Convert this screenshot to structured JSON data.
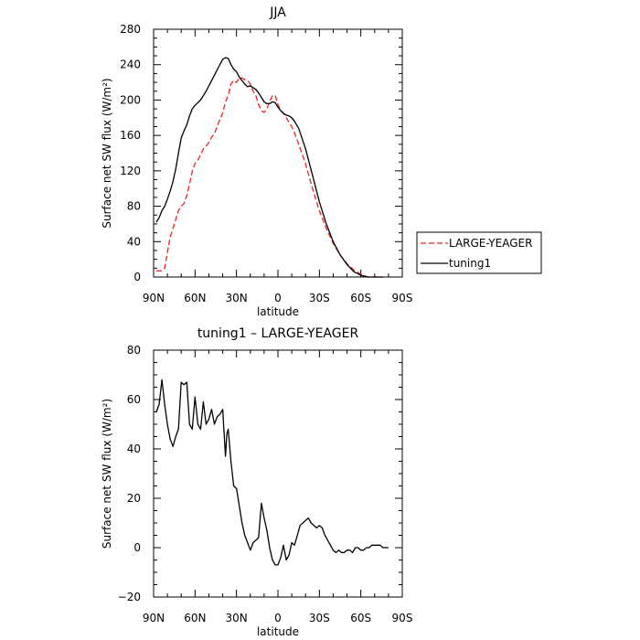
{
  "chart_data": [
    {
      "type": "line",
      "title": "JJA",
      "xlabel": "latitude",
      "ylabel": "Surface net SW flux (W/m²)",
      "xlim": [
        90,
        -90
      ],
      "ylim": [
        0,
        280
      ],
      "xticks": [
        90,
        60,
        30,
        0,
        -30,
        -60,
        -90
      ],
      "xtick_labels": [
        "90N",
        "60N",
        "30N",
        "0",
        "30S",
        "60S",
        "90S"
      ],
      "yticks": [
        0,
        40,
        80,
        120,
        160,
        200,
        240,
        280
      ],
      "ytick_labels": [
        "0",
        "40",
        "80",
        "120",
        "160",
        "200",
        "240",
        "280"
      ],
      "legend_position": "outside-right",
      "series": [
        {
          "name": "LARGE-YEAGER",
          "color": "#ee2020",
          "dash": "dashed",
          "x": [
            88,
            84,
            82,
            80,
            78,
            76,
            74,
            72,
            70,
            68,
            66,
            64,
            62,
            60,
            58,
            56,
            54,
            52,
            50,
            48,
            46,
            44,
            42,
            40,
            38,
            36,
            34,
            32,
            30,
            28,
            26,
            24,
            22,
            20,
            18,
            16,
            14,
            12,
            10,
            8,
            6,
            4,
            2,
            0,
            -2,
            -4,
            -6,
            -8,
            -10,
            -12,
            -15,
            -20,
            -25,
            -30,
            -35,
            -40,
            -45,
            -50,
            -55,
            -60,
            -65,
            -68,
            -70,
            -72,
            -74,
            -76
          ],
          "y": [
            7,
            7,
            10,
            28,
            45,
            55,
            65,
            75,
            80,
            83,
            92,
            105,
            120,
            128,
            132,
            138,
            145,
            148,
            152,
            158,
            162,
            170,
            178,
            185,
            198,
            205,
            218,
            222,
            220,
            225,
            225,
            223,
            222,
            218,
            210,
            205,
            195,
            188,
            186,
            190,
            198,
            205,
            205,
            195,
            188,
            185,
            180,
            175,
            170,
            163,
            150,
            128,
            100,
            75,
            55,
            38,
            25,
            15,
            8,
            3,
            0,
            0,
            0,
            0,
            0,
            0
          ]
        },
        {
          "name": "tuning1",
          "color": "#000000",
          "dash": "solid",
          "x": [
            88,
            86,
            84,
            82,
            80,
            78,
            76,
            74,
            72,
            70,
            68,
            66,
            64,
            62,
            60,
            58,
            56,
            54,
            52,
            50,
            48,
            46,
            44,
            42,
            40,
            38,
            36,
            34,
            32,
            30,
            28,
            26,
            24,
            22,
            20,
            18,
            16,
            14,
            12,
            10,
            8,
            6,
            4,
            2,
            0,
            -2,
            -4,
            -6,
            -8,
            -10,
            -12,
            -15,
            -20,
            -25,
            -30,
            -35,
            -40,
            -45,
            -50,
            -55,
            -60,
            -65,
            -68,
            -70,
            -72,
            -74,
            -76
          ],
          "y": [
            62,
            67,
            75,
            80,
            88,
            97,
            108,
            122,
            140,
            157,
            165,
            172,
            182,
            190,
            194,
            197,
            200,
            205,
            210,
            216,
            222,
            228,
            234,
            240,
            246,
            248,
            247,
            240,
            235,
            232,
            226,
            222,
            218,
            215,
            216,
            214,
            212,
            208,
            203,
            198,
            196,
            196,
            198,
            197,
            192,
            188,
            185,
            183,
            182,
            180,
            176,
            168,
            145,
            115,
            85,
            60,
            40,
            25,
            14,
            6,
            2,
            0,
            0,
            0,
            0,
            0,
            0
          ]
        }
      ]
    },
    {
      "type": "line",
      "title": "tuning1 – LARGE-YEAGER",
      "xlabel": "latitude",
      "ylabel": "Surface net SW flux (W/m²)",
      "xlim": [
        90,
        -90
      ],
      "ylim": [
        -20,
        80
      ],
      "xticks": [
        90,
        60,
        30,
        0,
        -30,
        -60,
        -90
      ],
      "xtick_labels": [
        "90N",
        "60N",
        "30N",
        "0",
        "30S",
        "60S",
        "90S"
      ],
      "yticks": [
        -20,
        0,
        20,
        40,
        60,
        80
      ],
      "ytick_labels": [
        "−20",
        "0",
        "20",
        "40",
        "60",
        "80"
      ],
      "series": [
        {
          "color": "#000000",
          "dash": "solid",
          "x": [
            88,
            86,
            84,
            82,
            80,
            78,
            76,
            74,
            72,
            70,
            68,
            66,
            64,
            62,
            60,
            58,
            56,
            54,
            52,
            50,
            48,
            46,
            44,
            42,
            40,
            38,
            37,
            36,
            34,
            32,
            30,
            28,
            26,
            24,
            22,
            20,
            18,
            16,
            14,
            12,
            10,
            8,
            6,
            4,
            2,
            0,
            -2,
            -4,
            -6,
            -8,
            -10,
            -12,
            -14,
            -16,
            -18,
            -20,
            -22,
            -24,
            -26,
            -28,
            -30,
            -32,
            -34,
            -36,
            -38,
            -40,
            -42,
            -44,
            -46,
            -48,
            -50,
            -52,
            -54,
            -56,
            -58,
            -60,
            -62,
            -64,
            -66,
            -68,
            -70,
            -72,
            -74,
            -76,
            -78,
            -80
          ],
          "y": [
            55,
            58,
            68,
            58,
            50,
            44,
            41,
            45,
            48,
            67,
            66,
            67,
            50,
            48,
            61,
            50,
            48,
            59,
            50,
            52,
            56,
            50,
            53,
            54,
            56,
            37,
            46,
            48,
            35,
            25,
            24,
            17,
            10,
            5,
            2,
            -1,
            2,
            3,
            4,
            18,
            12,
            7,
            0,
            -5,
            -7,
            -7,
            -4,
            1,
            -5,
            -3,
            2,
            1,
            5,
            9,
            10,
            11,
            12,
            10,
            9,
            8,
            9,
            8,
            5,
            3,
            1,
            -1,
            -2,
            -1,
            -2,
            -2,
            -1,
            -1,
            -2,
            0,
            0,
            -1,
            -1,
            0,
            0,
            1,
            1,
            1,
            1,
            0,
            0,
            0
          ]
        }
      ]
    }
  ]
}
